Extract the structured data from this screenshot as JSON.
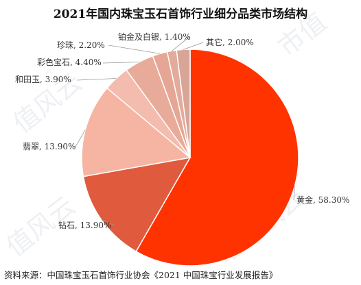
{
  "chart_data": {
    "type": "pie",
    "title": "2021年国内珠宝玉石首饰行业细分品类市场结构",
    "slices": [
      {
        "label": "黄金",
        "value": 58.3,
        "display": "黄金, 58.30%",
        "color": "#ff3300"
      },
      {
        "label": "钻石",
        "value": 13.9,
        "display": "钻石, 13.90%",
        "color": "#e05a3e"
      },
      {
        "label": "翡翠",
        "value": 13.9,
        "display": "翡翠, 13.90%",
        "color": "#f6b5a2"
      },
      {
        "label": "和田玉",
        "value": 3.9,
        "display": "和田玉, 3.90%",
        "color": "#f3bcae"
      },
      {
        "label": "彩色宝石",
        "value": 4.4,
        "display": "彩色宝石, 4.40%",
        "color": "#e9ab99"
      },
      {
        "label": "珍珠",
        "value": 2.2,
        "display": "珍珠, 2.20%",
        "color": "#e6a695"
      },
      {
        "label": "铂金及白银",
        "value": 1.4,
        "display": "铂金及白银, 1.40%",
        "color": "#e2ab9b"
      },
      {
        "label": "其它",
        "value": 2.0,
        "display": "其它, 2.00%",
        "color": "#d9a597"
      }
    ],
    "legend": "none"
  },
  "source": "资料来源：中国珠宝玉石首饰行业协会《2021 中国珠宝行业发展报告》"
}
